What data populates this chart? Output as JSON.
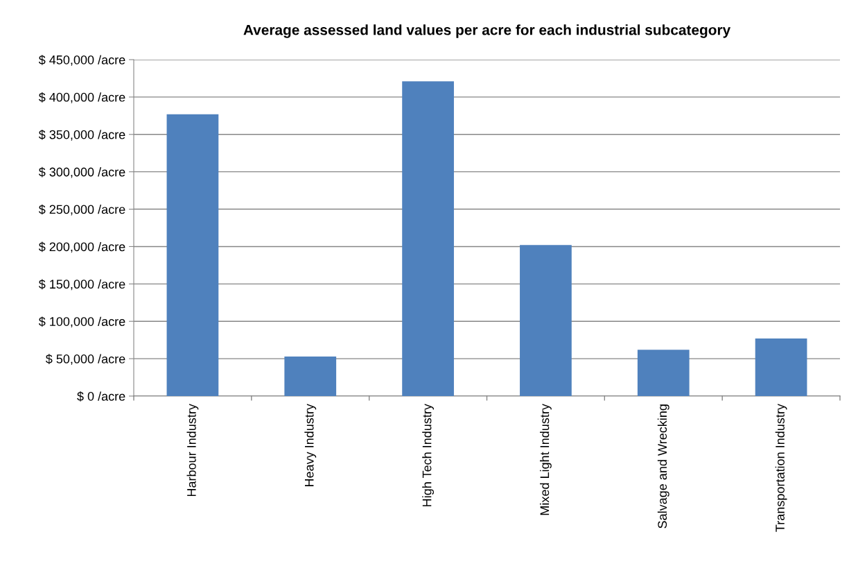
{
  "chart_data": {
    "type": "bar",
    "title": "Average assessed land values per acre for each industrial subcategory",
    "categories": [
      "Harbour Industry",
      "Heavy Industry",
      "High Tech Industry",
      "Mixed Light Industry",
      "Salvage and Wrecking",
      "Transportation Industry"
    ],
    "values": [
      377000,
      53000,
      421000,
      202000,
      62000,
      77000
    ],
    "color": "#4f81bd",
    "ylim": [
      0,
      450000
    ],
    "yticks": [
      {
        "value": 0,
        "label": "$ 0 /acre"
      },
      {
        "value": 50000,
        "label": "$ 50,000 /acre"
      },
      {
        "value": 100000,
        "label": "$ 100,000 /acre"
      },
      {
        "value": 150000,
        "label": "$ 150,000 /acre"
      },
      {
        "value": 200000,
        "label": "$ 200,000 /acre"
      },
      {
        "value": 250000,
        "label": "$ 250,000 /acre"
      },
      {
        "value": 300000,
        "label": "$ 300,000 /acre"
      },
      {
        "value": 350000,
        "label": "$ 350,000 /acre"
      },
      {
        "value": 400000,
        "label": "$ 400,000 /acre"
      },
      {
        "value": 450000,
        "label": "$ 450,000 /acre"
      }
    ],
    "grid": "y",
    "legend": false
  }
}
